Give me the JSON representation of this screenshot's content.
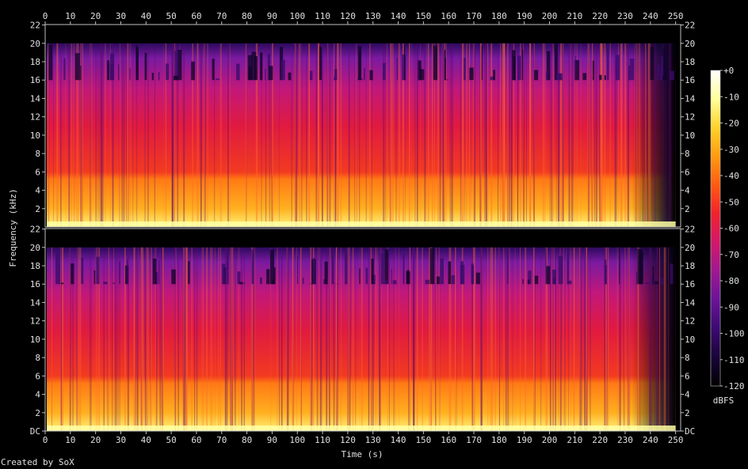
{
  "chart_data": {
    "type": "heatmap",
    "title": "",
    "xlabel": "Time (s)",
    "ylabel": "Frequency (kHz)",
    "xlim": [
      0,
      252
    ],
    "x_ticks": [
      "0",
      "10",
      "20",
      "30",
      "40",
      "50",
      "60",
      "70",
      "80",
      "90",
      "100",
      "110",
      "120",
      "130",
      "140",
      "150",
      "160",
      "170",
      "180",
      "190",
      "200",
      "210",
      "220",
      "230",
      "240",
      "250"
    ],
    "ylim": [
      0,
      22.05
    ],
    "channels": [
      {
        "y_ticks": [
          "22",
          "20",
          "18",
          "16",
          "14",
          "12",
          "10",
          "8",
          "6",
          "4",
          "2"
        ]
      },
      {
        "y_ticks": [
          "22",
          "20",
          "18",
          "16",
          "14",
          "12",
          "10",
          "8",
          "6",
          "4",
          "2",
          "DC"
        ]
      }
    ],
    "colorbar": {
      "label": "dBFS",
      "range": [
        -120,
        0
      ],
      "ticks": [
        "+0",
        "-10",
        "-20",
        "-30",
        "-40",
        "-50",
        "-60",
        "-70",
        "-80",
        "-90",
        "-100",
        "-110",
        "-120"
      ],
      "colors": [
        "#000000",
        "#1a0538",
        "#3b0a72",
        "#6b139a",
        "#a01890",
        "#d3186a",
        "#f0222e",
        "#ff5a12",
        "#ff9a10",
        "#ffd22a",
        "#ffff9a",
        "#ffffff"
      ]
    },
    "grid": false,
    "approx_content_end_s": 250,
    "lowband_energy_dbfs": -20,
    "midband_energy_dbfs": -55,
    "highband_energy_dbfs": -70,
    "lowpass_cutoff_khz": 20
  },
  "footer": {
    "credit": "Created by SoX"
  }
}
